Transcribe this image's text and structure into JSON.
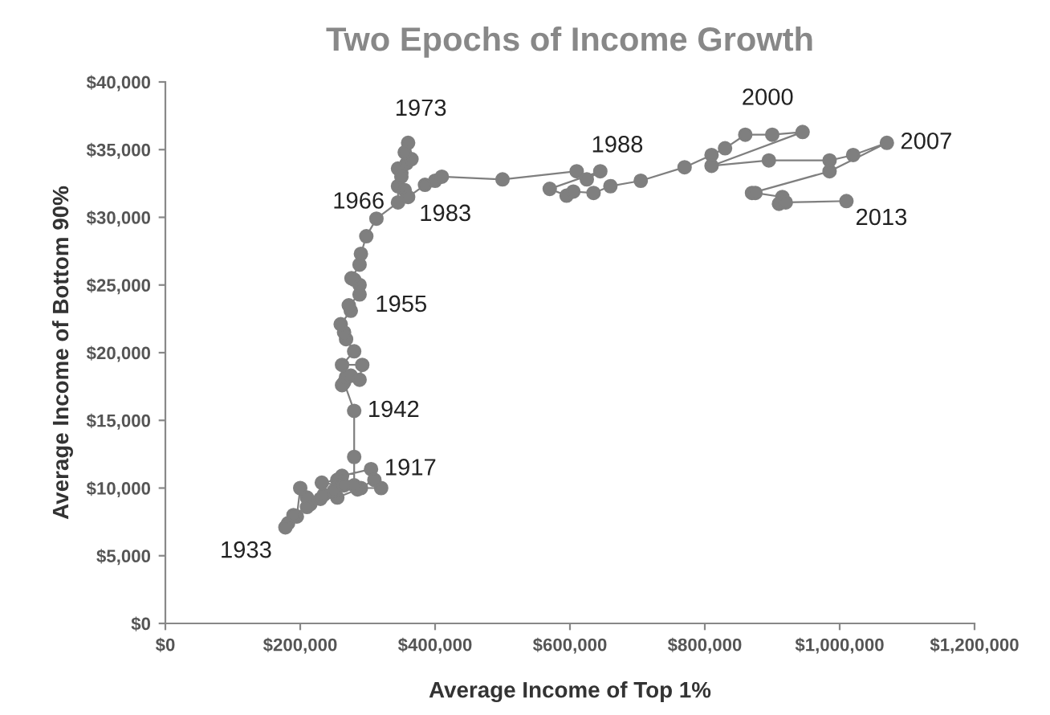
{
  "chart_data": {
    "type": "line",
    "title": "Two Epochs of Income Growth",
    "xlabel": "Average Income of Top 1%",
    "ylabel": "Average Income of Bottom 90%",
    "x": [
      305000,
      262000,
      255000,
      232000,
      258000,
      290000,
      320000,
      310000,
      285000,
      255000,
      230000,
      215000,
      210000,
      200000,
      195000,
      182000,
      178000,
      190000,
      210000,
      235000,
      250000,
      265000,
      280000,
      280000,
      280000,
      265000,
      262000,
      268000,
      275000,
      288000,
      292000,
      262000,
      280000,
      268000,
      265000,
      260000,
      275000,
      272000,
      288000,
      288000,
      280000,
      276000,
      288000,
      290000,
      298000,
      313000,
      345000,
      345000,
      350000,
      345000,
      358000,
      365000,
      360000,
      355000,
      350000,
      355000,
      360000,
      385000,
      400000,
      410000,
      500000,
      610000,
      625000,
      645000,
      570000,
      595000,
      605000,
      635000,
      660000,
      705000,
      770000,
      810000,
      830000,
      860000,
      900000,
      945000,
      810000,
      895000,
      985000,
      1020000,
      1070000,
      985000,
      870000,
      875000,
      915000,
      910000,
      920000,
      1010000
    ],
    "series": [
      {
        "color": "#7f7f7f",
        "values": [
          11400,
          10900,
          10600,
          10400,
          10200,
          10000,
          10000,
          10600,
          9900,
          9300,
          9200,
          8800,
          9300,
          10000,
          7900,
          7400,
          7100,
          8000,
          8600,
          9500,
          9800,
          10200,
          10200,
          12300,
          15700,
          17800,
          17600,
          18200,
          18300,
          18000,
          19100,
          19100,
          20100,
          21000,
          21500,
          22100,
          23100,
          23500,
          24300,
          25000,
          25400,
          25500,
          26500,
          27300,
          28600,
          29900,
          31100,
          32300,
          33300,
          33600,
          34000,
          34300,
          35500,
          34800,
          33000,
          32000,
          31500,
          32400,
          32700,
          33000,
          32800,
          33400,
          32800,
          33400,
          32100,
          31600,
          31900,
          31800,
          32300,
          32700,
          33700,
          34600,
          35100,
          36100,
          36100,
          36300,
          33800,
          34200,
          34200,
          34600,
          35500,
          33400,
          31800,
          31800,
          31500,
          31000,
          31100,
          31200
        ]
      }
    ],
    "marker": "circle",
    "line_style": "solid",
    "grid": false,
    "legend": false,
    "xlim": [
      0,
      1200000
    ],
    "ylim": [
      0,
      40000
    ],
    "xticks": [
      {
        "value": 0,
        "label": "$0"
      },
      {
        "value": 200000,
        "label": "$200,000"
      },
      {
        "value": 400000,
        "label": "$400,000"
      },
      {
        "value": 600000,
        "label": "$600,000"
      },
      {
        "value": 800000,
        "label": "$800,000"
      },
      {
        "value": 1000000,
        "label": "$1,000,000"
      },
      {
        "value": 1200000,
        "label": "$1,200,000"
      }
    ],
    "yticks": [
      {
        "value": 0,
        "label": "$0"
      },
      {
        "value": 5000,
        "label": "$5,000"
      },
      {
        "value": 10000,
        "label": "$10,000"
      },
      {
        "value": 15000,
        "label": "$15,000"
      },
      {
        "value": 20000,
        "label": "$20,000"
      },
      {
        "value": 25000,
        "label": "$25,000"
      },
      {
        "value": 30000,
        "label": "$30,000"
      },
      {
        "value": 35000,
        "label": "$35,000"
      },
      {
        "value": 40000,
        "label": "$40,000"
      }
    ],
    "annotations": [
      {
        "text": "1917",
        "x": 305000,
        "y": 11400
      },
      {
        "text": "1933",
        "x": 178000,
        "y": 7100
      },
      {
        "text": "1942",
        "x": 280000,
        "y": 15700
      },
      {
        "text": "1955",
        "x": 288000,
        "y": 24300
      },
      {
        "text": "1966",
        "x": 345000,
        "y": 31100
      },
      {
        "text": "1973",
        "x": 360000,
        "y": 35500
      },
      {
        "text": "1983",
        "x": 360000,
        "y": 31500
      },
      {
        "text": "1988",
        "x": 625000,
        "y": 32800
      },
      {
        "text": "2000",
        "x": 945000,
        "y": 36300
      },
      {
        "text": "2007",
        "x": 1070000,
        "y": 35500
      },
      {
        "text": "2013",
        "x": 1010000,
        "y": 31200
      }
    ]
  }
}
